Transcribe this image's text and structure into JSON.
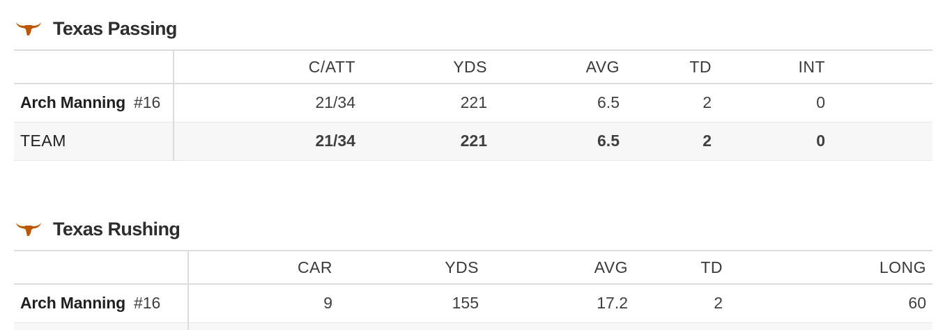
{
  "brand": {
    "accent": "#bf5700"
  },
  "passing": {
    "title": "Texas Passing",
    "headers": [
      "C/ATT",
      "YDS",
      "AVG",
      "TD",
      "INT"
    ],
    "rows": [
      {
        "player": "Arch Manning",
        "jersey": "#16",
        "values": [
          "21/34",
          "221",
          "6.5",
          "2",
          "0"
        ]
      }
    ],
    "team": {
      "label": "TEAM",
      "values": [
        "21/34",
        "221",
        "6.5",
        "2",
        "0"
      ]
    }
  },
  "rushing": {
    "title": "Texas Rushing",
    "headers": [
      "CAR",
      "YDS",
      "AVG",
      "TD",
      "LONG"
    ],
    "rows": [
      {
        "player": "Arch Manning",
        "jersey": "#16",
        "values": [
          "9",
          "155",
          "17.2",
          "2",
          "60"
        ]
      }
    ]
  }
}
